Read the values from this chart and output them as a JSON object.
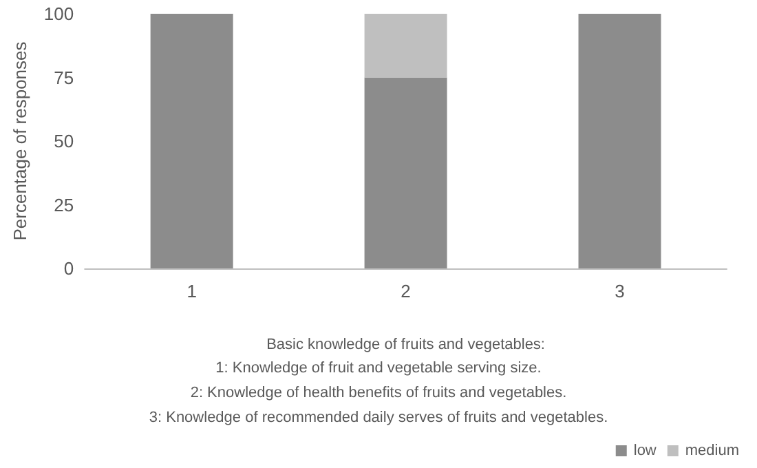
{
  "chart_data": {
    "type": "bar",
    "stacked": true,
    "categories": [
      "1",
      "2",
      "3"
    ],
    "series": [
      {
        "name": "low",
        "color": "#8c8c8c",
        "values": [
          100,
          75,
          100
        ]
      },
      {
        "name": "medium",
        "color": "#bfbfbf",
        "values": [
          0,
          25,
          0
        ]
      }
    ],
    "ylabel": "Percentage of responses",
    "xlabel": "Basic knowledge of fruits and vegetables:",
    "annotations": [
      "1: Knowledge of fruit and vegetable serving size.",
      "2: Knowledge of health benefits of fruits and vegetables.",
      "3: Knowledge of recommended daily serves of fruits and vegetables."
    ],
    "ylim": [
      0,
      100
    ],
    "yticks": [
      0,
      25,
      50,
      75,
      100
    ],
    "grid": false,
    "legend": "bottom right"
  }
}
